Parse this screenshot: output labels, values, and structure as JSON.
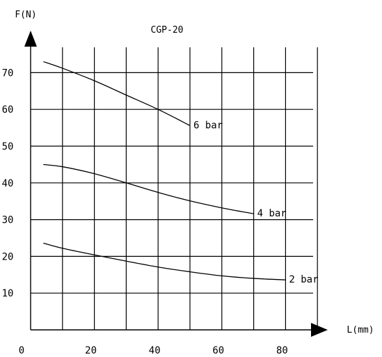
{
  "chart_data": {
    "type": "line",
    "title": "CGP-20",
    "xlabel": "L(mm)",
    "ylabel": "F(N)",
    "xlim": [
      0,
      90
    ],
    "ylim": [
      0,
      80
    ],
    "x_ticks": [
      "0",
      "20",
      "40",
      "60",
      "80"
    ],
    "y_ticks": [
      "10",
      "20",
      "30",
      "40",
      "50",
      "60",
      "70"
    ],
    "grid": true,
    "series": [
      {
        "name": "6 bar",
        "x": [
          4,
          10,
          20,
          30,
          40,
          50
        ],
        "y": [
          73,
          71.2,
          67.8,
          63.9,
          60,
          55.6
        ]
      },
      {
        "name": "4 bar",
        "x": [
          4,
          10,
          20,
          30,
          40,
          50,
          60,
          70
        ],
        "y": [
          45,
          44.4,
          42.5,
          40,
          37.4,
          35.1,
          33.2,
          31.6
        ]
      },
      {
        "name": "2 bar",
        "x": [
          4,
          10,
          20,
          30,
          40,
          50,
          60,
          70,
          80
        ],
        "y": [
          23.6,
          22.2,
          20.4,
          18.7,
          17.1,
          15.8,
          14.7,
          14,
          13.6
        ]
      }
    ],
    "colors": {
      "line": "#000000",
      "grid": "#000000",
      "background": "#ffffff"
    }
  }
}
